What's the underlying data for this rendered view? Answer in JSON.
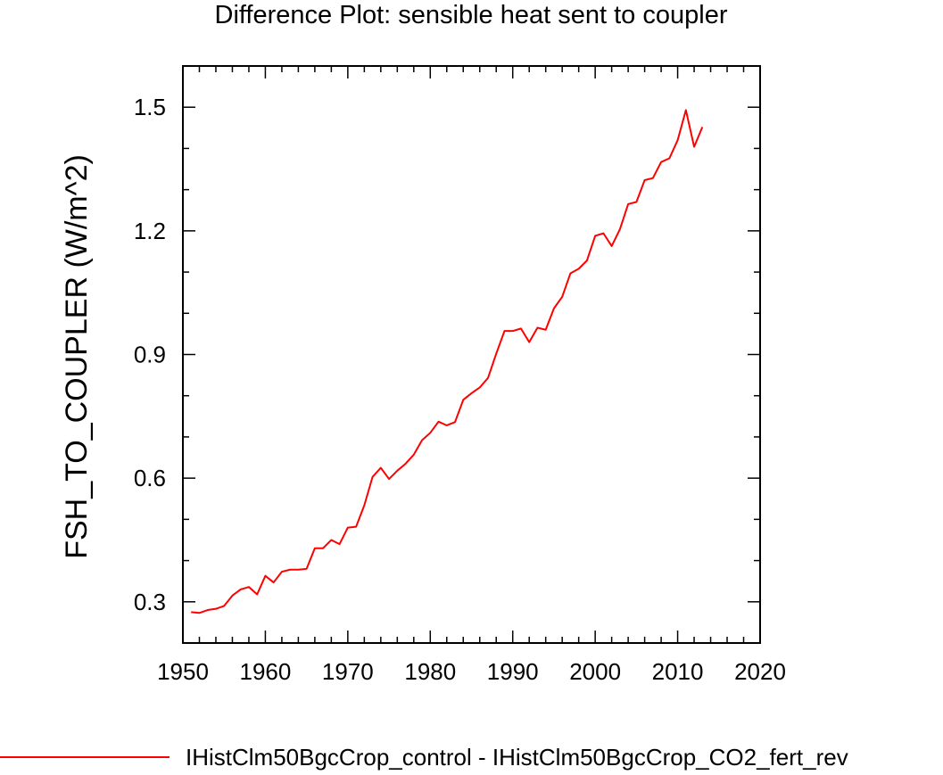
{
  "chart_data": {
    "type": "line",
    "title": "Difference Plot: sensible heat sent to coupler",
    "xlabel": "",
    "ylabel": "FSH_TO_COUPLER  (W/m^2)",
    "xlim": [
      1950,
      2020
    ],
    "ylim": [
      0.2,
      1.6
    ],
    "x_ticks": [
      1950,
      1960,
      1970,
      1980,
      1990,
      2000,
      2010,
      2020
    ],
    "y_ticks": [
      0.3,
      0.6,
      0.9,
      1.2,
      1.5
    ],
    "x_tick_labels": [
      "1950",
      "1960",
      "1970",
      "1980",
      "1990",
      "2000",
      "2010",
      "2020"
    ],
    "y_tick_labels": [
      "0.3",
      "0.6",
      "0.9",
      "1.2",
      "1.5"
    ],
    "grid": false,
    "legend_position": "bottom",
    "series": [
      {
        "name": "IHistClm50BgcCrop_control - IHistClm50BgcCrop_CO2_fert_rev",
        "color": "#ff0000",
        "x": [
          1951,
          1952,
          1953,
          1954,
          1955,
          1956,
          1957,
          1958,
          1959,
          1960,
          1961,
          1962,
          1963,
          1964,
          1965,
          1966,
          1967,
          1968,
          1969,
          1970,
          1971,
          1972,
          1973,
          1974,
          1975,
          1976,
          1977,
          1978,
          1979,
          1980,
          1981,
          1982,
          1983,
          1984,
          1985,
          1986,
          1987,
          1988,
          1989,
          1990,
          1991,
          1992,
          1993,
          1994,
          1995,
          1996,
          1997,
          1998,
          1999,
          2000,
          2001,
          2002,
          2003,
          2004,
          2005,
          2006,
          2007,
          2008,
          2009,
          2010,
          2011,
          2012,
          2013
        ],
        "y": [
          0.275,
          0.273,
          0.28,
          0.283,
          0.29,
          0.315,
          0.33,
          0.336,
          0.318,
          0.363,
          0.347,
          0.373,
          0.378,
          0.378,
          0.38,
          0.43,
          0.43,
          0.45,
          0.44,
          0.48,
          0.482,
          0.534,
          0.603,
          0.625,
          0.598,
          0.618,
          0.635,
          0.657,
          0.692,
          0.71,
          0.737,
          0.728,
          0.736,
          0.79,
          0.806,
          0.82,
          0.843,
          0.902,
          0.957,
          0.957,
          0.963,
          0.93,
          0.965,
          0.96,
          1.012,
          1.04,
          1.097,
          1.108,
          1.128,
          1.188,
          1.194,
          1.163,
          1.204,
          1.265,
          1.27,
          1.323,
          1.328,
          1.367,
          1.376,
          1.42,
          1.493,
          1.404,
          1.452
        ]
      }
    ]
  }
}
